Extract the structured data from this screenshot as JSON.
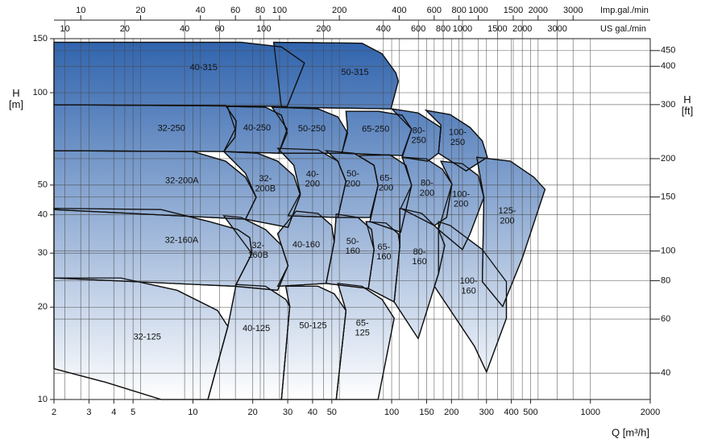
{
  "chart_data": {
    "type": "area",
    "xscale": "log",
    "yscale": "log",
    "grid": true,
    "gradient": [
      "#2f63ad",
      "#ffffff"
    ],
    "xlabel": "Q [m³/h]",
    "xlim": [
      2,
      2000
    ],
    "xticks": [
      2,
      3,
      4,
      5,
      10,
      20,
      30,
      40,
      50,
      100,
      150,
      200,
      300,
      400,
      500,
      1000,
      2000
    ],
    "ylabel": "H\n[m]",
    "ylim": [
      10,
      150
    ],
    "yticks": [
      10,
      20,
      30,
      40,
      50,
      100,
      150
    ],
    "y2label": "H\n[ft]",
    "y2lim": [
      32.81,
      492.1
    ],
    "y2ticks": [
      40,
      60,
      80,
      100,
      150,
      200,
      300,
      400,
      450
    ],
    "x2label": "US gal./min",
    "x2lim": [
      8.806,
      8806
    ],
    "x2ticks": [
      10,
      20,
      40,
      60,
      100,
      200,
      400,
      600,
      800,
      1000,
      1500,
      2000,
      3000
    ],
    "x3label": "Imp.gal./min",
    "x3lim": [
      7.333,
      7333
    ],
    "x3ticks": [
      10,
      20,
      40,
      60,
      80,
      100,
      200,
      400,
      600,
      800,
      1000,
      1500,
      2000,
      3000
    ],
    "series": [
      {
        "name": "65-\n125",
        "x": [
          53.6,
          70.9,
          89.4,
          103,
          85.4,
          52.6,
          58.9
        ],
        "values": [
          23.9,
          23.4,
          21.2,
          18.4,
          10,
          10,
          19.5
        ]
      },
      {
        "name": "50-125",
        "x": [
          29.3,
          42.6,
          51.4,
          58.9,
          52.6,
          27.9,
          30.7
        ],
        "values": [
          23.4,
          23.4,
          22.1,
          19.5,
          10,
          10,
          20.1
        ]
      },
      {
        "name": "40-125",
        "x": [
          16.5,
          23.2,
          29.3,
          30.7,
          27.9,
          11.9,
          15.0
        ],
        "values": [
          23.7,
          23.4,
          21.2,
          20.1,
          10,
          10,
          17.3
        ]
      },
      {
        "name": "32-125",
        "x": [
          2,
          4.34,
          8.33,
          13.3,
          15.0,
          11.9,
          6.92,
          3.6,
          2
        ],
        "values": [
          24.9,
          24.9,
          22.7,
          19.5,
          17.3,
          10,
          10,
          11.4,
          12.6
        ]
      },
      {
        "name": "100-\n160",
        "x": [
          172,
          197,
          286,
          378,
          378,
          300,
          261,
          164,
          172
        ],
        "values": [
          38.0,
          36.9,
          30.8,
          24.2,
          18.4,
          12.3,
          14.9,
          23.4,
          25.7
        ]
      },
      {
        "name": "80-\n160",
        "x": [
          110,
          142,
          172,
          185,
          172,
          136,
          103,
          110
        ],
        "values": [
          42.0,
          40.4,
          35.8,
          31.8,
          25.7,
          15.8,
          20.8,
          31.8
        ]
      },
      {
        "name": "65-\n160",
        "x": [
          74.3,
          93.7,
          108,
          110,
          103,
          76.4,
          81.5
        ],
        "values": [
          38.0,
          37.6,
          34.7,
          31.8,
          20.8,
          23.0,
          30.8
        ]
      },
      {
        "name": "50-\n160",
        "x": [
          52.6,
          67.7,
          79.3,
          81.5,
          76.4,
          46.8,
          51.4
        ],
        "values": [
          40.2,
          39.2,
          35.8,
          30.8,
          23.0,
          23.9,
          32.7
        ]
      },
      {
        "name": "40-160",
        "x": [
          26.7,
          33.1,
          42.6,
          49.9,
          51.4,
          46.8,
          26.7,
          30.1
        ],
        "values": [
          34.7,
          41.1,
          40.4,
          36.9,
          32.7,
          23.9,
          23.4,
          27.3
        ]
      },
      {
        "name": "32-\n160B",
        "x": [
          14.3,
          17.5,
          23.2,
          27.9,
          30.1,
          26.7,
          16.3,
          19.8
        ],
        "values": [
          39.7,
          39.2,
          35.8,
          31.8,
          27.3,
          22.7,
          23.4,
          29.9
        ]
      },
      {
        "name": "32-160A",
        "x": [
          2,
          6.92,
          12.1,
          16.8,
          19.3,
          19.8,
          16.3,
          2
        ],
        "values": [
          42.0,
          41.6,
          38.0,
          35.8,
          33.7,
          29.9,
          23.4,
          24.9
        ]
      },
      {
        "name": "125-\n200",
        "x": [
          268,
          396,
          520,
          591,
          455,
          362,
          286,
          291
        ],
        "values": [
          61.6,
          59.8,
          53.0,
          48.4,
          29.0,
          20.1,
          24.2,
          45.6
        ]
      },
      {
        "name": "100-\n200",
        "x": [
          177,
          227,
          273,
          291,
          248,
          227,
          172,
          201
        ],
        "values": [
          59.8,
          58.7,
          53.6,
          45.6,
          34.7,
          30.8,
          35.8,
          50.4
        ]
      },
      {
        "name": "80-\n200",
        "x": [
          113,
          149,
          180,
          201,
          189,
          164,
          111,
          126
        ],
        "values": [
          61.6,
          60.9,
          56.3,
          50.4,
          39.2,
          36.9,
          42.0,
          49.9
        ]
      },
      {
        "name": "65-\n200",
        "x": [
          67.7,
          98.2,
          118,
          126,
          111,
          77.8,
          85.4,
          81.5
        ],
        "values": [
          62.4,
          62.7,
          58.0,
          49.9,
          35.1,
          38.0,
          49.9,
          58.0
        ]
      },
      {
        "name": "50-\n200",
        "x": [
          46.8,
          64.6,
          81.5,
          85.4,
          77.8,
          53.6,
          58.9,
          53.6
        ],
        "values": [
          64.7,
          63.5,
          58.0,
          49.9,
          39.2,
          39.2,
          51.4,
          59.8
        ]
      },
      {
        "name": "40-\n200",
        "x": [
          26.7,
          42.6,
          53.6,
          58.9,
          53.6,
          30.1,
          34.7,
          32.2
        ],
        "values": [
          65.9,
          65.1,
          59.8,
          51.4,
          39.2,
          39.7,
          47.0,
          58.0
        ]
      },
      {
        "name": "32-\n200B",
        "x": [
          14.3,
          21.1,
          26.7,
          32.2,
          34.7,
          30.1,
          18.4,
          20.8,
          18.4
        ],
        "values": [
          64.3,
          63.5,
          59.8,
          53.6,
          46.4,
          36.4,
          38.7,
          45.6,
          54.6
        ]
      },
      {
        "name": "32-200A",
        "x": [
          2,
          10.0,
          14.6,
          18.4,
          20.8,
          18.4,
          2
        ],
        "values": [
          64.7,
          64.3,
          59.8,
          53.0,
          45.6,
          38.7,
          41.6
        ]
      },
      {
        "name": "100-\n250",
        "x": [
          149,
          197,
          248,
          286,
          303,
          237,
          172,
          177
        ],
        "values": [
          87.6,
          84.9,
          77.0,
          69.6,
          61.6,
          55.6,
          63.5,
          78.5
        ]
      },
      {
        "name": "80-\n250",
        "x": [
          100.1,
          136,
          177,
          172,
          152,
          113,
          126
        ],
        "values": [
          88.6,
          85.9,
          77.0,
          63.5,
          59.8,
          61.6,
          76.1
        ]
      },
      {
        "name": "65-250",
        "x": [
          58.9,
          85.4,
          113,
          126,
          113,
          56.1,
          60.0
        ],
        "values": [
          87.0,
          87.0,
          84.4,
          76.1,
          62.4,
          63.5,
          76.1
        ]
      },
      {
        "name": "50-250",
        "x": [
          25.0,
          42.6,
          53.6,
          60.0,
          56.1,
          27.0,
          29.8
        ],
        "values": [
          89.7,
          88.6,
          83.4,
          73.9,
          63.5,
          63.5,
          76.1
        ]
      },
      {
        "name": "40-250",
        "x": [
          14.9,
          23.2,
          27.9,
          29.8,
          27.0,
          14.3,
          16.3
        ],
        "values": [
          90.2,
          89.7,
          84.4,
          73.9,
          63.5,
          64.3,
          76.1
        ]
      },
      {
        "name": "32-250",
        "x": [
          2,
          14.6,
          16.5,
          16.3,
          14.3,
          2
        ],
        "values": [
          91.3,
          90.8,
          80.9,
          71.7,
          64.3,
          64.7
        ]
      },
      {
        "name": "50-315",
        "x": [
          25.5,
          70.9,
          89.4,
          105,
          108,
          99.2,
          27.9
        ],
        "values": [
          146,
          145,
          134,
          116,
          109,
          88.6,
          89.7
        ]
      },
      {
        "name": "40-315",
        "x": [
          2,
          17.5,
          27.9,
          36.4,
          29.8,
          2
        ],
        "values": [
          146,
          146,
          141,
          125,
          90.2,
          91.3
        ]
      }
    ]
  }
}
